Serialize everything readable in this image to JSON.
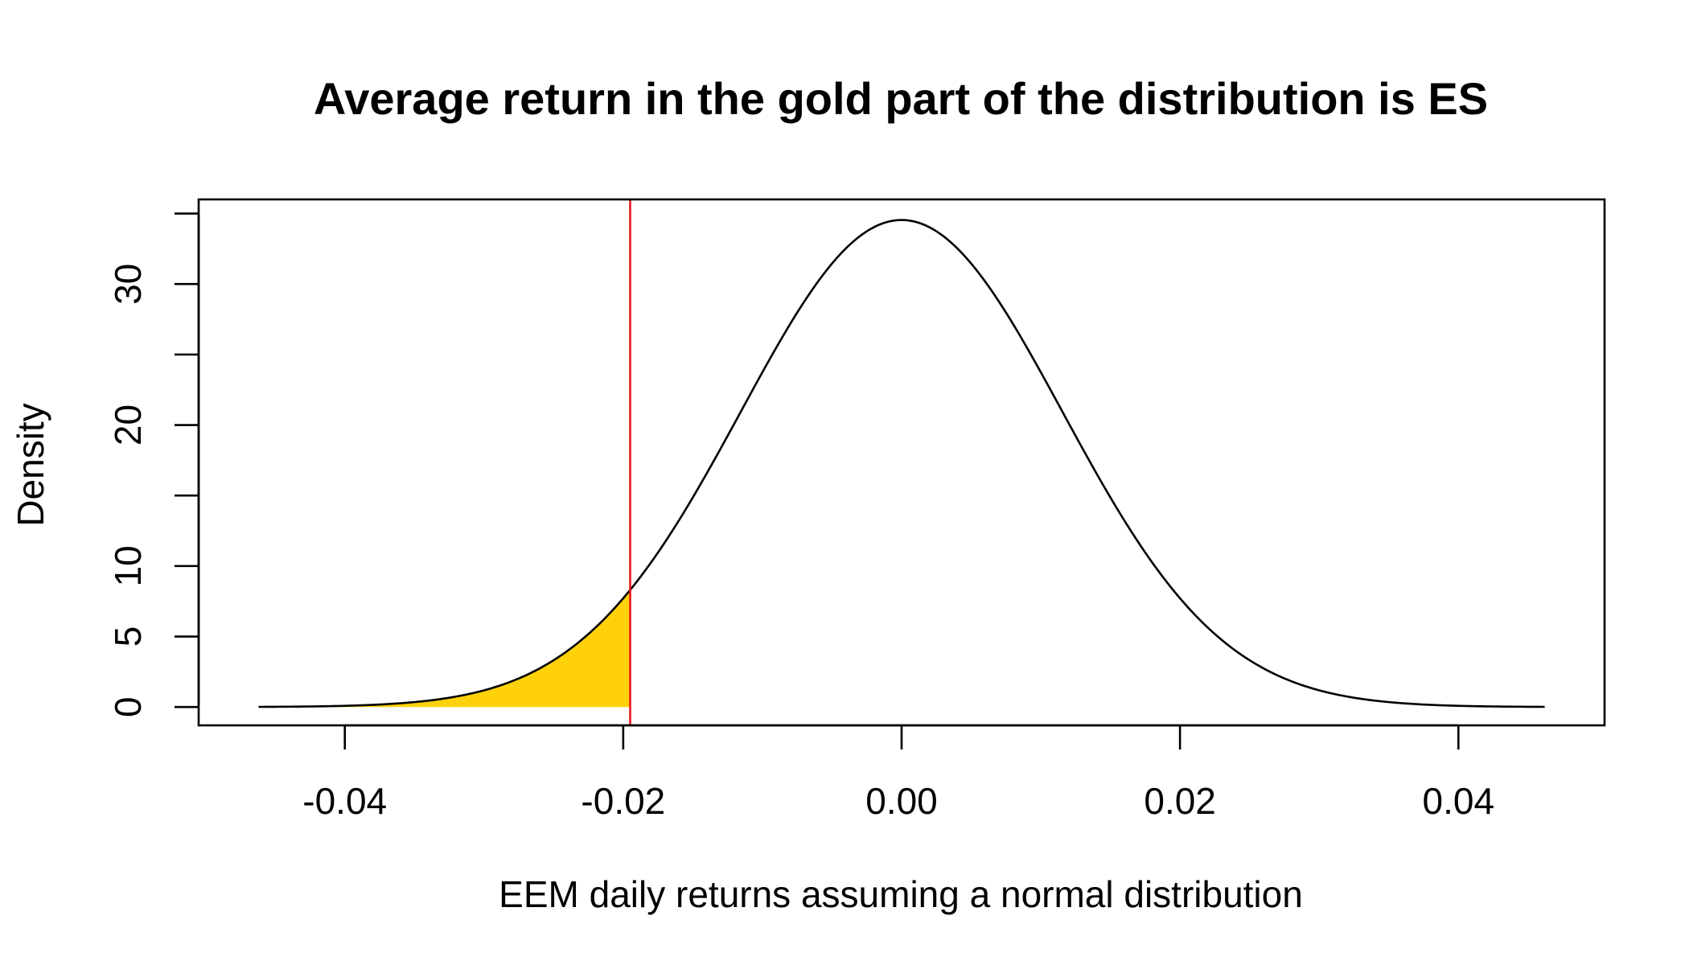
{
  "chart_data": {
    "type": "area",
    "title": "Average return in the gold part of the distribution is ES",
    "xlabel": "EEM daily returns assuming a normal distribution",
    "ylabel": "Density",
    "distribution": {
      "name": "normal",
      "mean": 0.0,
      "sd": 0.01155
    },
    "x_range_curve": [
      -0.0462,
      0.0462
    ],
    "xlim": [
      -0.0505,
      0.0505
    ],
    "ylim": [
      -1.3,
      36.0
    ],
    "xticks": [
      {
        "value": -0.04,
        "label": "-0.04"
      },
      {
        "value": -0.02,
        "label": "-0.02"
      },
      {
        "value": 0.0,
        "label": "0.00"
      },
      {
        "value": 0.02,
        "label": "0.02"
      },
      {
        "value": 0.04,
        "label": "0.04"
      }
    ],
    "yticks": [
      {
        "value": 0,
        "label": "0"
      },
      {
        "value": 5,
        "label": "5"
      },
      {
        "value": 10,
        "label": "10"
      },
      {
        "value": 15,
        "label": ""
      },
      {
        "value": 20,
        "label": "20"
      },
      {
        "value": 25,
        "label": ""
      },
      {
        "value": 30,
        "label": "30"
      },
      {
        "value": 35,
        "label": ""
      }
    ],
    "var_line": {
      "x": -0.0195,
      "color": "#e41a1c"
    },
    "shaded_tail": {
      "from": -0.0462,
      "to": -0.0195,
      "color": "#ffd10a"
    },
    "curve_color": "#000000",
    "grid": false,
    "legend": "none"
  }
}
